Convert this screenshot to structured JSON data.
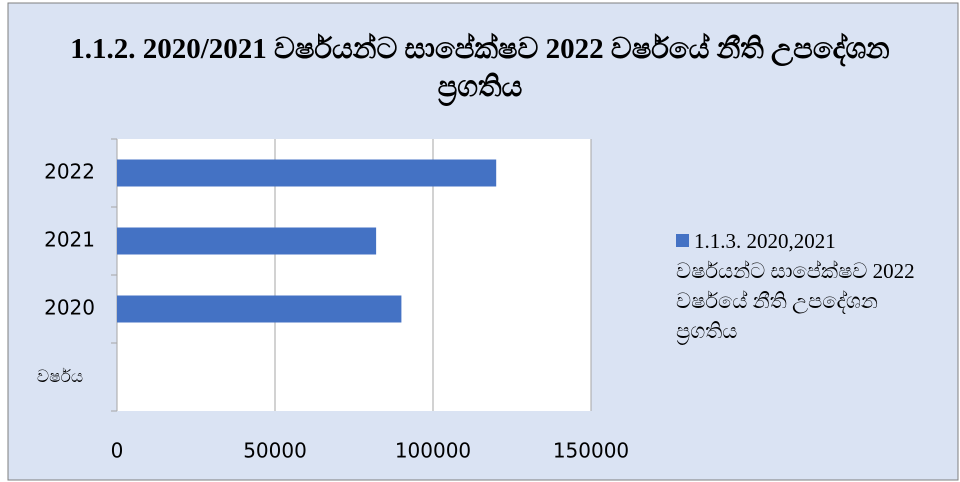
{
  "chart_data": {
    "type": "bar",
    "orientation": "horizontal",
    "title": "1.1.2. 2020/2021 වර්ෂයන්ට සාපේක්ෂව 2022 වර්ෂයේ නීති උපදේශන  ප්‍රගතිය",
    "categories": [
      "2022",
      "2021",
      "2020",
      "වර්ෂය"
    ],
    "series": [
      {
        "name": "1.1.3. 2020,2021 වර්ෂයන්ට සාපේක්ෂව 2022 වර්ෂයේ නීති උපදේශන  ප්‍රගතිය",
        "color": "#4472c4",
        "values": [
          120000,
          82000,
          90000,
          null
        ]
      }
    ],
    "xlim": [
      0,
      150000
    ],
    "xticks": [
      0,
      50000,
      100000,
      150000
    ],
    "grid": true,
    "legend": "right"
  }
}
